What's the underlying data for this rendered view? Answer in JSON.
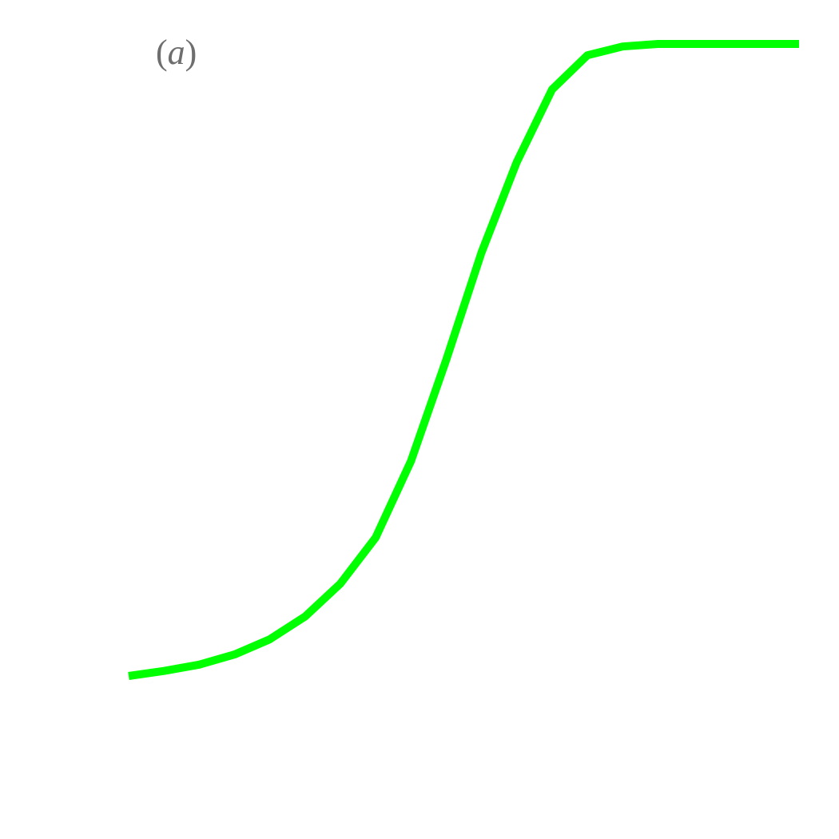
{
  "panel_label": {
    "open": "(",
    "letter": "a",
    "close": ")"
  },
  "chart_data": {
    "type": "line",
    "title": "",
    "xlabel": "",
    "ylabel": "",
    "xlim": [
      0,
      19
    ],
    "ylim": [
      0,
      1
    ],
    "grid": false,
    "series": [
      {
        "color": "#00ff00",
        "x": [
          0,
          1,
          2,
          3,
          4,
          5,
          6,
          7,
          8,
          9,
          10,
          11,
          12,
          13,
          14,
          15,
          16,
          17,
          18,
          19
        ],
        "y": [
          0.0,
          0.008,
          0.018,
          0.034,
          0.058,
          0.094,
          0.146,
          0.219,
          0.34,
          0.5,
          0.67,
          0.813,
          0.928,
          0.982,
          0.996,
          1.0,
          1.0,
          1.0,
          1.0,
          1.0
        ]
      }
    ]
  }
}
